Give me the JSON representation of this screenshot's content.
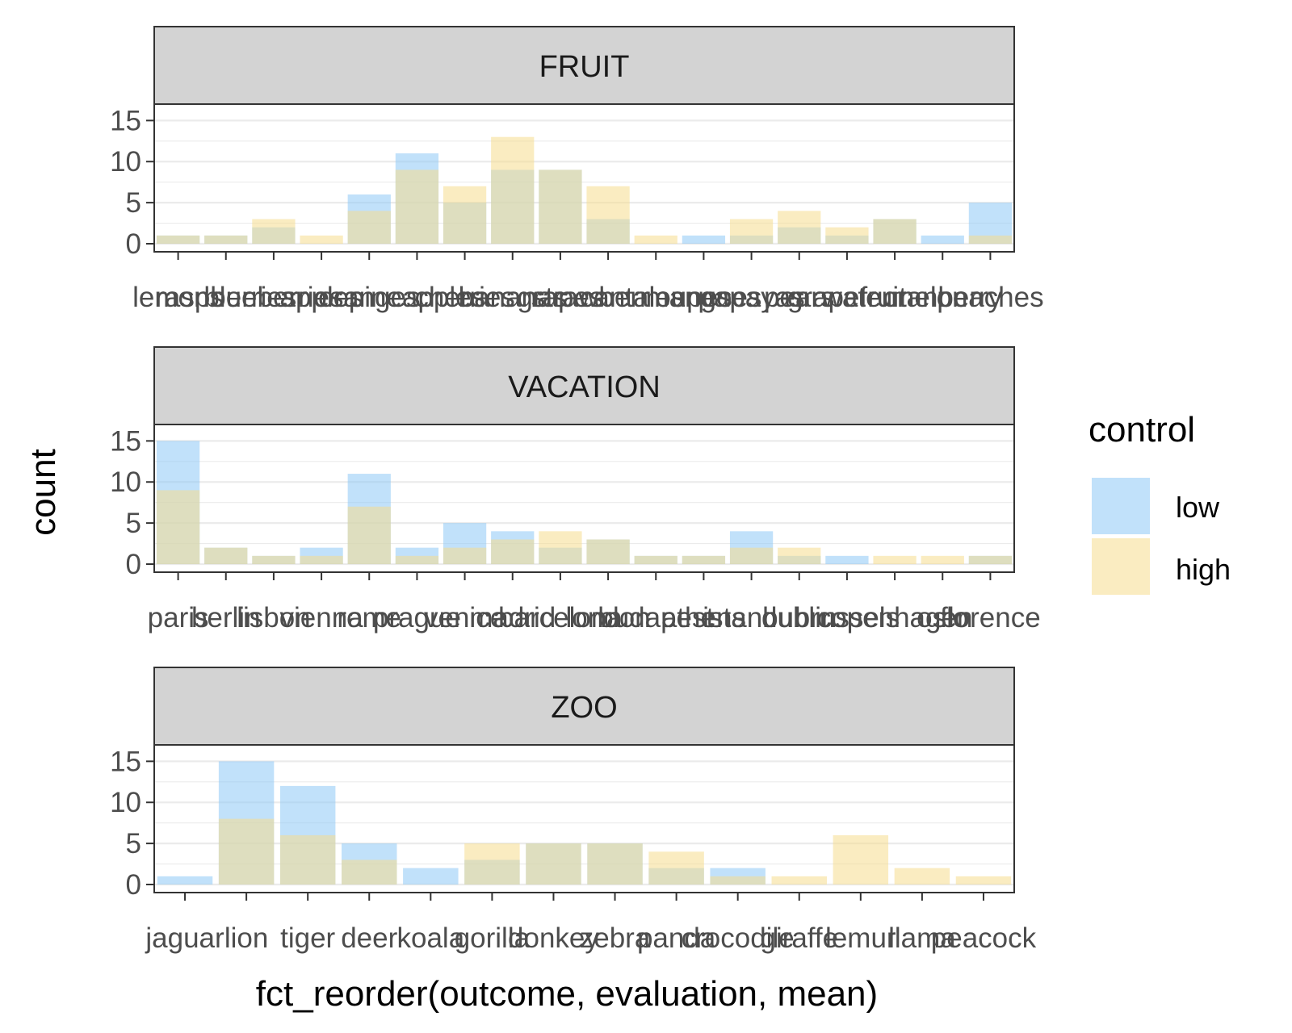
{
  "chart_data": {
    "type": "bar",
    "xlabel": "fct_reorder(outcome, evaluation, mean)",
    "ylabel": "count",
    "ylim": [
      0,
      17
    ],
    "yticks": [
      0,
      5,
      10,
      15
    ],
    "grid": true,
    "legend": {
      "title": "control",
      "placement": "right",
      "entries": [
        {
          "name": "low",
          "color": "#8EC8F5"
        },
        {
          "name": "high",
          "color": "#F5DC8E"
        }
      ]
    },
    "panels": [
      {
        "strip": "FRUIT",
        "categories": [
          "lemons",
          "raspberries",
          "blueberries",
          "apples",
          "oranges",
          "pineapples",
          "cherries",
          "bananas",
          "grapes",
          "strawberries",
          "cantaloupes",
          "mangoes",
          "papayas",
          "pears",
          "grapefruit",
          "watermelon",
          "cranberry",
          "peaches"
        ],
        "series": [
          {
            "name": "low",
            "values": [
              1,
              1,
              2,
              0,
              6,
              11,
              5,
              9,
              9,
              3,
              0,
              1,
              1,
              2,
              1,
              3,
              1,
              5
            ]
          },
          {
            "name": "high",
            "values": [
              1,
              1,
              3,
              1,
              4,
              9,
              7,
              13,
              9,
              7,
              1,
              0,
              3,
              4,
              2,
              3,
              0,
              1
            ]
          }
        ]
      },
      {
        "strip": "VACATION",
        "categories": [
          "paris",
          "berlin",
          "lisbon",
          "vienna",
          "rome",
          "prague",
          "venice",
          "madrid",
          "barcelona",
          "london",
          "budapest",
          "athens",
          "istanbul",
          "dublin",
          "brussels",
          "copenhagen",
          "oslo",
          "florence"
        ],
        "series": [
          {
            "name": "low",
            "values": [
              15,
              2,
              1,
              2,
              11,
              2,
              5,
              4,
              2,
              3,
              1,
              1,
              4,
              1,
              1,
              0,
              0,
              1
            ]
          },
          {
            "name": "high",
            "values": [
              9,
              2,
              1,
              1,
              7,
              1,
              2,
              3,
              4,
              3,
              1,
              1,
              2,
              2,
              0,
              1,
              1,
              1
            ]
          }
        ]
      },
      {
        "strip": "ZOO",
        "categories": [
          "jaguar",
          "lion",
          "tiger",
          "deer",
          "koala",
          "gorilla",
          "donkey",
          "zebra",
          "panda",
          "crocodile",
          "giraffe",
          "lemur",
          "llama",
          "peacock"
        ],
        "series": [
          {
            "name": "low",
            "values": [
              1,
              15,
              12,
              5,
              2,
              3,
              5,
              5,
              2,
              2,
              0,
              0,
              0,
              0
            ]
          },
          {
            "name": "high",
            "values": [
              0,
              8,
              6,
              3,
              0,
              5,
              5,
              5,
              4,
              1,
              1,
              6,
              2,
              1
            ]
          }
        ]
      }
    ]
  }
}
